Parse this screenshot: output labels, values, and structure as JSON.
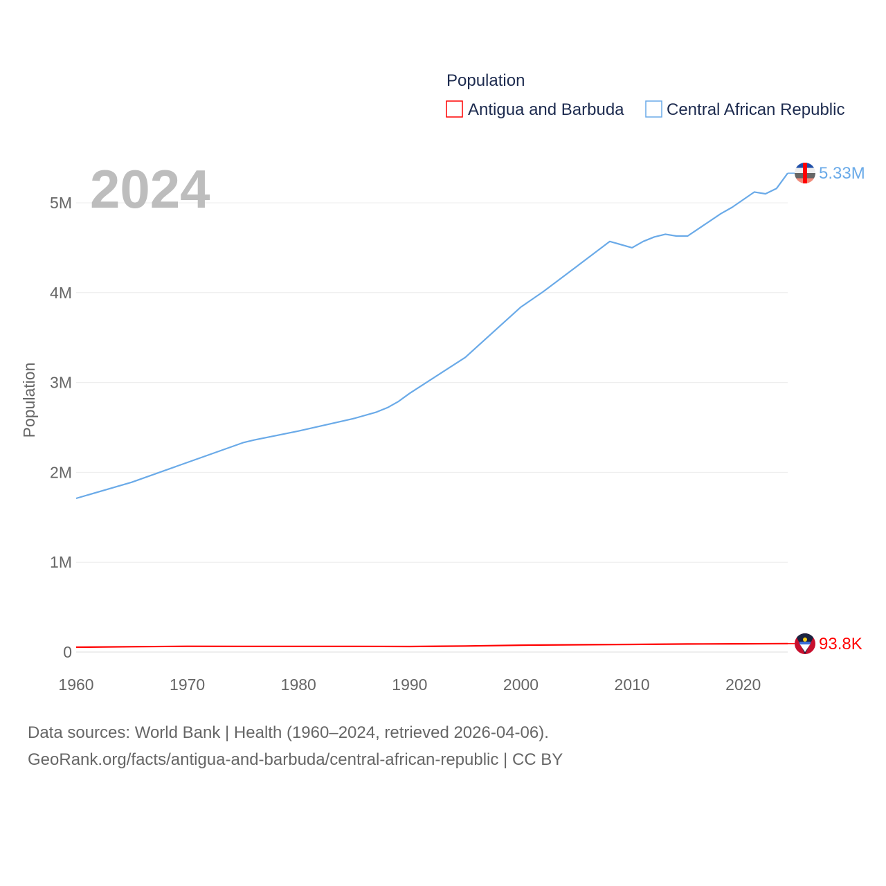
{
  "chart_data": {
    "type": "line",
    "title": "Population",
    "ylabel": "Population",
    "xlabel": "",
    "xlim": [
      1960,
      2024
    ],
    "ylim": [
      0,
      5500000
    ],
    "x_ticks": [
      1960,
      1970,
      1980,
      1990,
      2000,
      2010,
      2020
    ],
    "x_tick_labels": [
      "1960",
      "1970",
      "1980",
      "1990",
      "2000",
      "2010",
      "2020"
    ],
    "y_ticks": [
      0,
      1000000,
      2000000,
      3000000,
      4000000,
      5000000
    ],
    "y_tick_labels": [
      "0",
      "1M",
      "2M",
      "3M",
      "4M",
      "5M"
    ],
    "grid": true,
    "legend_position": "top-right",
    "year_label": "2024",
    "series": [
      {
        "name": "Antigua and Barbuda",
        "color": "#ff0000",
        "end_label": "93.8K",
        "x": [
          1960,
          1965,
          1970,
          1975,
          1980,
          1985,
          1990,
          1995,
          2000,
          2005,
          2010,
          2015,
          2020,
          2024
        ],
        "values": [
          54000,
          59000,
          64000,
          63000,
          63000,
          63000,
          62000,
          67000,
          76000,
          81000,
          85000,
          89000,
          92000,
          93800
        ]
      },
      {
        "name": "Central African Republic",
        "color": "#6aaae8",
        "end_label": "5.33M",
        "x": [
          1960,
          1965,
          1970,
          1975,
          1976,
          1980,
          1985,
          1987,
          1988,
          1989,
          1990,
          1995,
          2000,
          2002,
          2005,
          2008,
          2010,
          2011,
          2012,
          2013,
          2014,
          2015,
          2018,
          2019,
          2021,
          2022,
          2023,
          2024
        ],
        "values": [
          1710000,
          1890000,
          2110000,
          2330000,
          2360000,
          2460000,
          2600000,
          2670000,
          2720000,
          2790000,
          2880000,
          3280000,
          3840000,
          4010000,
          4290000,
          4570000,
          4500000,
          4570000,
          4620000,
          4650000,
          4630000,
          4630000,
          4880000,
          4950000,
          5120000,
          5100000,
          5160000,
          5330000
        ]
      }
    ]
  },
  "footer": {
    "line1": "Data sources: World Bank | Health (1960–2024, retrieved 2026-04-06).",
    "line2": "GeoRank.org/facts/antigua-and-barbuda/central-african-republic | CC BY"
  }
}
